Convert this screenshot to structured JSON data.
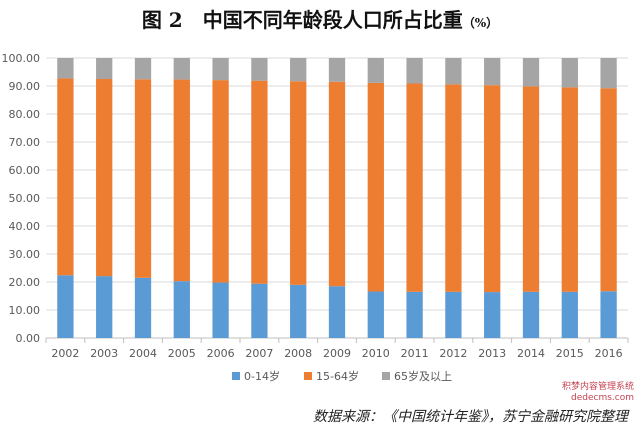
{
  "title": {
    "main": "图 2　中国不同年龄段人口所占比重",
    "unit": "（%）"
  },
  "source": "数据来源：《中国统计年鉴》，苏宁金融研究院整理",
  "watermark": {
    "line1": "积梦内容管理系统",
    "line2": "dedecms.com"
  },
  "colors": {
    "young": "#5b9bd5",
    "working": "#ed7d31",
    "old": "#a5a5a5",
    "grid": "#d9d9d9",
    "axis": "#bfbfbf",
    "text": "#595959"
  },
  "chart_data": {
    "type": "bar",
    "stacked": true,
    "categories": [
      "2002",
      "2003",
      "2004",
      "2005",
      "2006",
      "2007",
      "2008",
      "2009",
      "2010",
      "2011",
      "2012",
      "2013",
      "2014",
      "2015",
      "2016"
    ],
    "series": [
      {
        "name": "0-14岁",
        "values": [
          22.4,
          22.1,
          21.5,
          20.3,
          19.8,
          19.4,
          19.0,
          18.5,
          16.6,
          16.5,
          16.5,
          16.4,
          16.5,
          16.5,
          16.7
        ]
      },
      {
        "name": "15-64岁",
        "values": [
          70.3,
          70.4,
          70.9,
          72.0,
          72.3,
          72.5,
          72.7,
          73.0,
          74.5,
          74.4,
          74.1,
          73.9,
          73.4,
          73.0,
          72.5
        ]
      },
      {
        "name": "65岁及以上",
        "values": [
          7.3,
          7.5,
          7.6,
          7.7,
          7.9,
          8.1,
          8.3,
          8.5,
          8.9,
          9.1,
          9.4,
          9.7,
          10.1,
          10.5,
          10.8
        ]
      }
    ],
    "ylim": [
      0,
      100
    ],
    "yticks": [
      "0.00",
      "10.00",
      "20.00",
      "30.00",
      "40.00",
      "50.00",
      "60.00",
      "70.00",
      "80.00",
      "90.00",
      "100.00"
    ],
    "grid": true,
    "legend_position": "bottom"
  }
}
